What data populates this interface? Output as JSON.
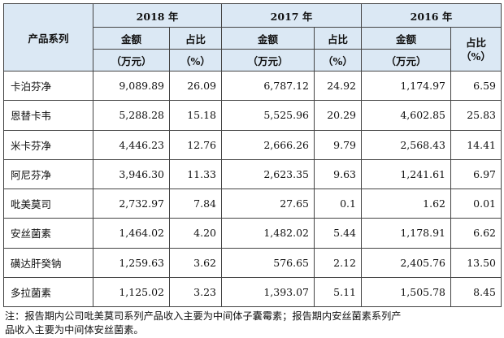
{
  "header": {
    "product_series": "产品系列",
    "year_2018": "2018 年",
    "year_2017": "2017 年",
    "year_2016": "2016 年",
    "amount": "金额",
    "ratio": "占比",
    "unit_amount": "（万元）",
    "unit_ratio": "（%）",
    "ratio_2016_unit": "（%）"
  },
  "rows": [
    {
      "name": "卡泊芬净",
      "a2018": "9,089.89",
      "r2018": "26.09",
      "a2017": "6,787.12",
      "r2017": "24.92",
      "a2016": "1,174.97",
      "r2016": "6.59"
    },
    {
      "name": "恩替卡韦",
      "a2018": "5,288.28",
      "r2018": "15.18",
      "a2017": "5,525.96",
      "r2017": "20.29",
      "a2016": "4,602.85",
      "r2016": "25.83"
    },
    {
      "name": "米卡芬净",
      "a2018": "4,446.23",
      "r2018": "12.76",
      "a2017": "2,666.26",
      "r2017": "9.79",
      "a2016": "2,568.43",
      "r2016": "14.41"
    },
    {
      "name": "阿尼芬净",
      "a2018": "3,946.30",
      "r2018": "11.33",
      "a2017": "2,623.35",
      "r2017": "9.63",
      "a2016": "1,241.61",
      "r2016": "6.97"
    },
    {
      "name": "吡美莫司",
      "a2018": "2,732.97",
      "r2018": "7.84",
      "a2017": "27.65",
      "r2017": "0.1",
      "a2016": "1.62",
      "r2016": "0.01"
    },
    {
      "name": "安丝菌素",
      "a2018": "1,464.02",
      "r2018": "4.20",
      "a2017": "1,482.02",
      "r2017": "5.44",
      "a2016": "1,178.91",
      "r2016": "6.62"
    },
    {
      "name": "磺达肝癸钠",
      "a2018": "1,259.63",
      "r2018": "3.62",
      "a2017": "576.65",
      "r2017": "2.12",
      "a2016": "2,405.76",
      "r2016": "13.50"
    },
    {
      "name": "多拉菌素",
      "a2018": "1,125.02",
      "r2018": "3.23",
      "a2017": "1,393.07",
      "r2017": "5.11",
      "a2016": "1,505.78",
      "r2016": "8.45"
    }
  ],
  "note": {
    "line1": "注：报告期内公司吡美莫司系列产品收入主要为中间体子囊霉素；报告期内安丝菌素系列产",
    "line2": "品收入主要为中间体安丝菌素。"
  }
}
